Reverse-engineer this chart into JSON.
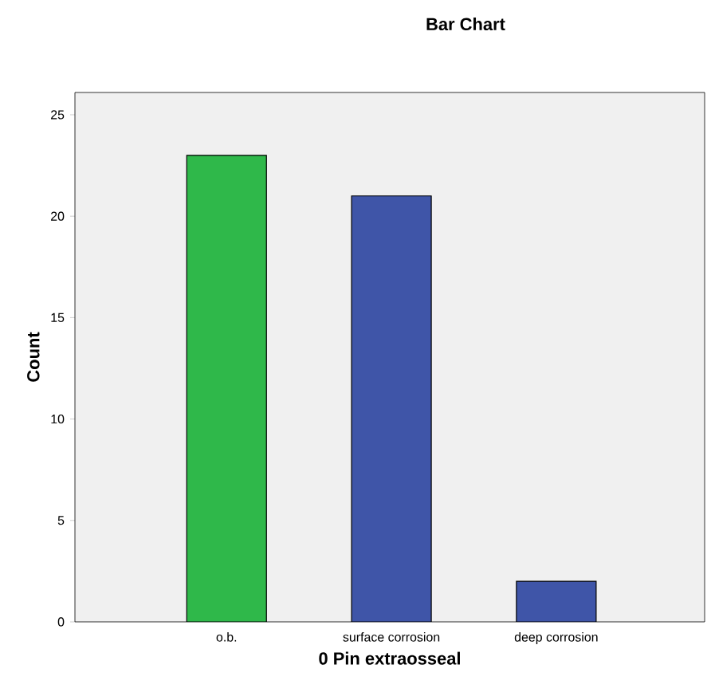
{
  "chart_data": {
    "type": "bar",
    "title": "Bar Chart",
    "xlabel": "0 Pin extraosseal",
    "ylabel": "Count",
    "categories": [
      "o.b.",
      "surface corrosion",
      "deep corrosion"
    ],
    "values": [
      23,
      21,
      2
    ],
    "colors": [
      "#2fb84a",
      "#3f55a8",
      "#3f55a8"
    ],
    "ylim": [
      0,
      26.1
    ],
    "yticks": [
      0,
      5,
      10,
      15,
      20,
      25
    ],
    "grid": false
  }
}
